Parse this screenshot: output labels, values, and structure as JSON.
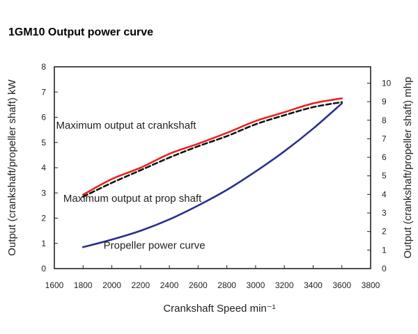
{
  "chart_data": {
    "type": "line",
    "title": "1GM10 Output power curve",
    "xlabel": "Crankshaft Speed min⁻¹",
    "ylabel_left": "Output (crankshaft/propeller shaft) kW",
    "ylabel_right": "Output (crankshaft/propeller shaft) mhp",
    "xlim": [
      1600,
      3800
    ],
    "ylim": [
      0,
      8
    ],
    "ylim_right": [
      0,
      10.88
    ],
    "xticks": [
      "1600",
      "1800",
      "2000",
      "2200",
      "2400",
      "2600",
      "2800",
      "3000",
      "3200",
      "3400",
      "3600",
      "3800"
    ],
    "yticks_left": [
      "0",
      "1",
      "2",
      "3",
      "4",
      "5",
      "6",
      "7",
      "8"
    ],
    "yticks_right": [
      "0",
      "1",
      "2",
      "3",
      "4",
      "5",
      "6",
      "7",
      "8",
      "9",
      "10"
    ],
    "grid": false,
    "series": [
      {
        "name": "Maximum output at crankshaft",
        "color": "#e8231f",
        "style": "solid",
        "x": [
          1800,
          2000,
          2200,
          2400,
          2600,
          2800,
          3000,
          3200,
          3400,
          3600
        ],
        "y": [
          2.93,
          3.55,
          4.0,
          4.55,
          4.95,
          5.38,
          5.85,
          6.2,
          6.55,
          6.75
        ]
      },
      {
        "name": "Maximum output at prop shaft",
        "color": "#111111",
        "style": "dashed",
        "x": [
          1800,
          2000,
          2200,
          2400,
          2600,
          2800,
          3000,
          3200,
          3400,
          3600
        ],
        "y": [
          2.85,
          3.4,
          3.9,
          4.4,
          4.85,
          5.25,
          5.72,
          6.08,
          6.4,
          6.6
        ]
      },
      {
        "name": "Propeller power curve",
        "color": "#2b2e8c",
        "style": "solid",
        "x": [
          1800,
          2000,
          2200,
          2400,
          2600,
          2800,
          3000,
          3200,
          3400,
          3600
        ],
        "y": [
          0.85,
          1.15,
          1.5,
          1.95,
          2.5,
          3.12,
          3.85,
          4.65,
          5.55,
          6.55
        ]
      }
    ],
    "annotations": [
      {
        "text": "Maximum output at crankshaft",
        "x": 2000,
        "y": 5.55
      },
      {
        "text": "Maximum output at prop shaft",
        "x": 2050,
        "y": 2.65
      },
      {
        "text": "Propeller power curve",
        "x": 2330,
        "y": 0.78
      }
    ]
  }
}
